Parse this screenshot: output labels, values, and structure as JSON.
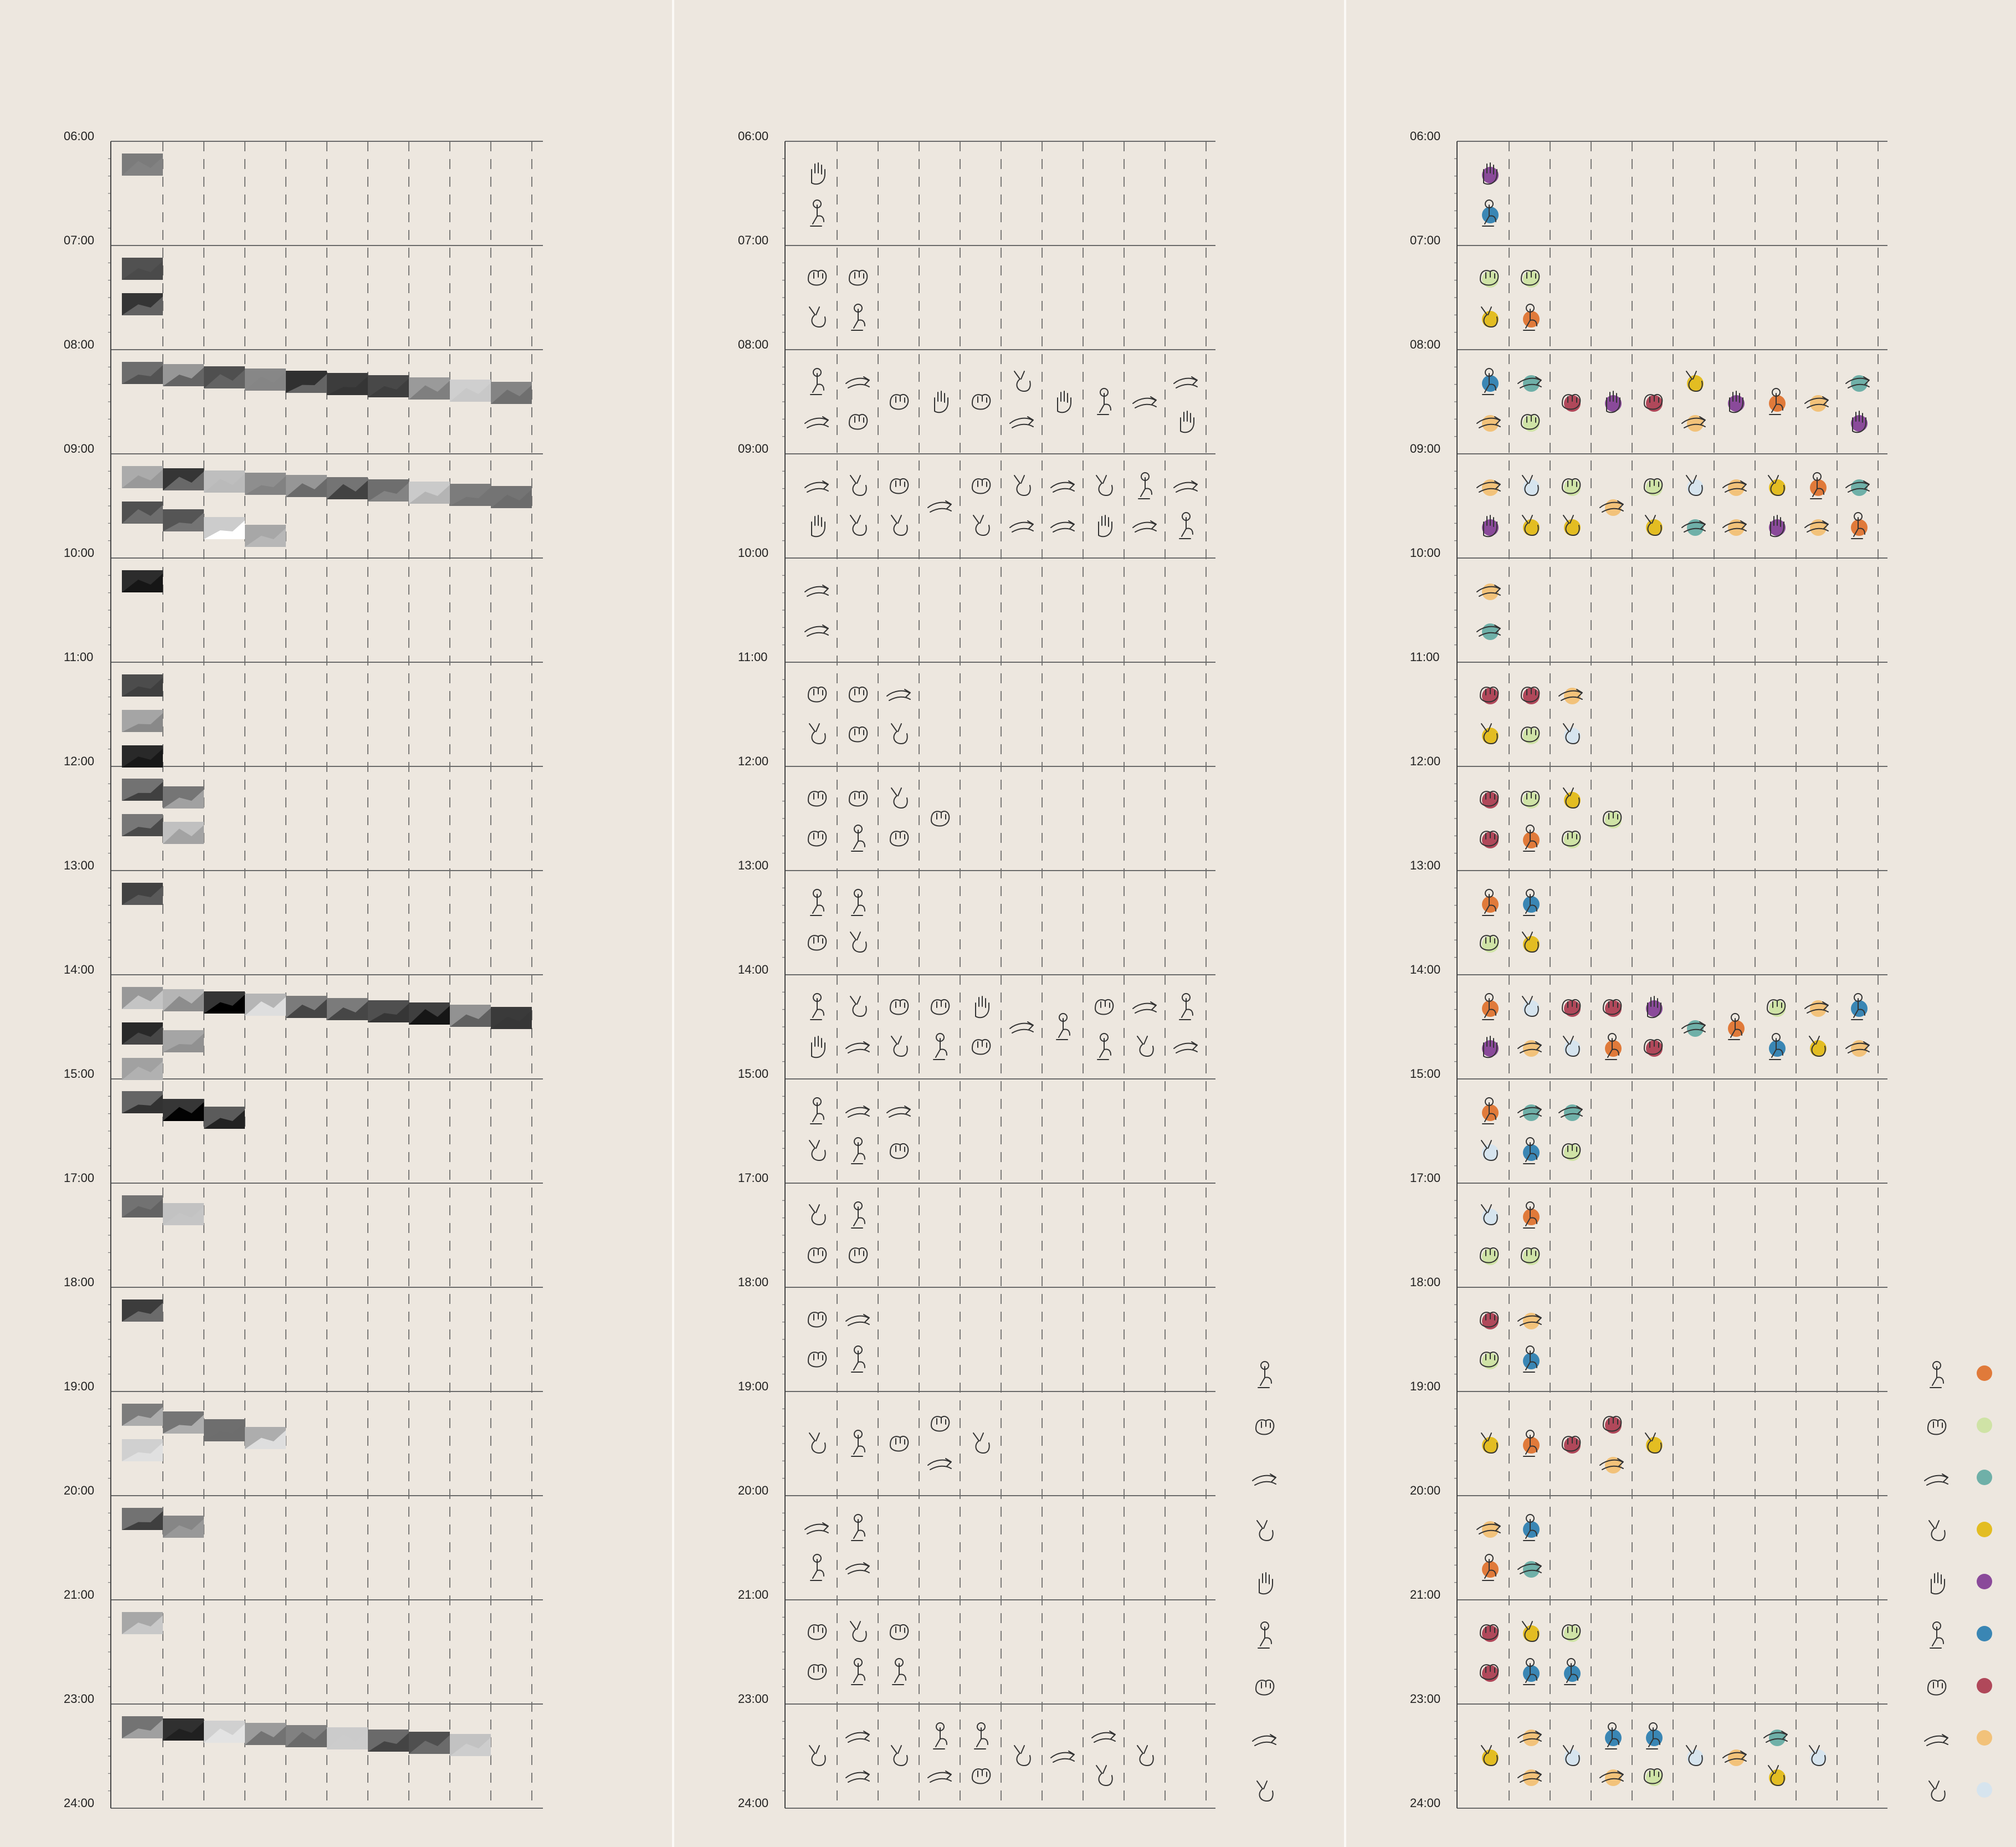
{
  "time_labels": [
    "06:00",
    "07:00",
    "08:00",
    "09:00",
    "10:00",
    "11:00",
    "12:00",
    "13:00",
    "14:00",
    "15:00",
    "17:00",
    "18:00",
    "19:00",
    "20:00",
    "21:00",
    "23:00",
    "24:00"
  ],
  "columns_per_row": 10,
  "row_counts": [
    1,
    2,
    10,
    10,
    1,
    3,
    4,
    2,
    10,
    3,
    2,
    2,
    5,
    2,
    3,
    9
  ],
  "photo_rows": [
    {
      "time": "06:00",
      "counts": [
        1
      ]
    },
    {
      "time": "07:00",
      "counts": [
        1,
        1
      ]
    },
    {
      "time": "08:00",
      "counts": [
        10
      ]
    },
    {
      "time": "09:00",
      "counts": [
        10,
        4
      ]
    },
    {
      "time": "10:00",
      "counts": [
        1
      ]
    },
    {
      "time": "11:00",
      "counts": [
        1,
        1,
        1
      ]
    },
    {
      "time": "12:00",
      "counts": [
        2,
        2
      ]
    },
    {
      "time": "13:00",
      "counts": [
        1
      ]
    },
    {
      "time": "14:00",
      "counts": [
        10,
        2,
        1
      ]
    },
    {
      "time": "15:00",
      "counts": [
        3
      ]
    },
    {
      "time": "17:00",
      "counts": [
        2
      ]
    },
    {
      "time": "18:00",
      "counts": [
        1
      ]
    },
    {
      "time": "19:00",
      "counts": [
        4,
        1
      ]
    },
    {
      "time": "20:00",
      "counts": [
        2
      ]
    },
    {
      "time": "21:00",
      "counts": [
        1
      ]
    },
    {
      "time": "23:00",
      "counts": [
        9
      ]
    }
  ],
  "legend": [
    {
      "icon": "index-tap-icon",
      "color": "#e07a3a"
    },
    {
      "icon": "index-press-icon",
      "color": "#cfe3a6"
    },
    {
      "icon": "pinch-icon",
      "color": "#6fb0a8"
    },
    {
      "icon": "swipe-icon",
      "color": "#e3bd22"
    },
    {
      "icon": "open-palm-icon",
      "color": "#8a4a9a"
    },
    {
      "icon": "multi-finger-icon",
      "color": "#3a86b4"
    },
    {
      "icon": "point-icon",
      "color": "#b0485a"
    },
    {
      "icon": "grab-icon",
      "color": "#f2c27a"
    },
    {
      "icon": "scroll-icon",
      "color": "#d6e4ee"
    }
  ]
}
